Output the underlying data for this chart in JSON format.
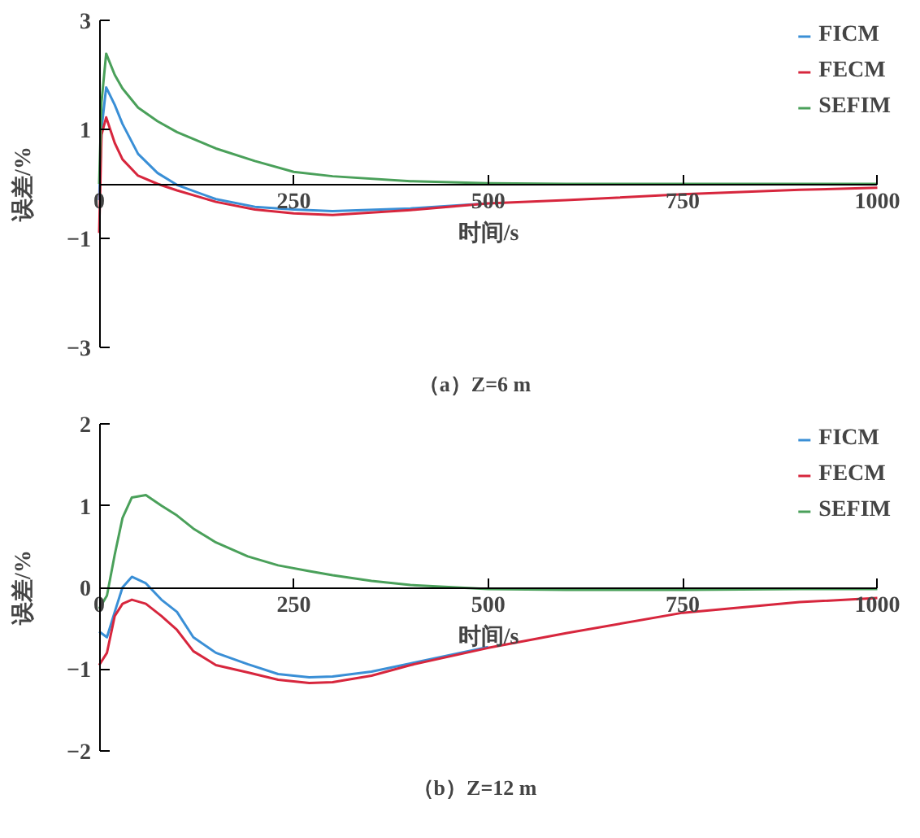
{
  "chart_data": [
    {
      "type": "line",
      "title": "（a）Z=6 m",
      "xlabel": "时间/s",
      "ylabel": "误差/%",
      "xlim": [
        0,
        1000
      ],
      "ylim": [
        -3,
        3
      ],
      "xticks": [
        0,
        250,
        500,
        750,
        1000
      ],
      "yticks": [
        -3,
        -1,
        1,
        3
      ],
      "legend": "top right",
      "grid": false,
      "x": [
        0,
        3,
        9,
        20,
        30,
        50,
        75,
        100,
        150,
        200,
        250,
        300,
        400,
        500,
        600,
        750,
        900,
        1000
      ],
      "series": [
        {
          "name": "FICM",
          "color": "#3a8fd6",
          "values": [
            -0.3,
            1.0,
            1.77,
            1.45,
            1.1,
            0.55,
            0.2,
            -0.02,
            -0.28,
            -0.42,
            -0.47,
            -0.5,
            -0.45,
            -0.36,
            null,
            null,
            null,
            null
          ]
        },
        {
          "name": "FECM",
          "color": "#d7263d",
          "values": [
            -0.9,
            0.9,
            1.22,
            0.75,
            0.45,
            0.15,
            0.0,
            -0.12,
            -0.33,
            -0.47,
            -0.54,
            -0.57,
            -0.48,
            -0.36,
            -0.3,
            -0.19,
            -0.11,
            -0.07
          ]
        },
        {
          "name": "SEFIM",
          "color": "#4aa05a",
          "values": [
            0,
            1.5,
            2.39,
            2.0,
            1.75,
            1.4,
            1.15,
            0.95,
            0.65,
            0.42,
            0.22,
            0.14,
            0.05,
            0.01,
            0,
            0,
            0,
            0
          ]
        }
      ]
    },
    {
      "type": "line",
      "title": "（b）Z=12 m",
      "xlabel": "时间/s",
      "ylabel": "误差/%",
      "xlim": [
        0,
        1000
      ],
      "ylim": [
        -2,
        2
      ],
      "xticks": [
        0,
        250,
        500,
        750,
        1000
      ],
      "yticks": [
        -2,
        -1,
        0,
        1,
        2
      ],
      "legend": "top right",
      "grid": false,
      "x": [
        0,
        10,
        20,
        30,
        42,
        60,
        80,
        100,
        121,
        150,
        191,
        230,
        270,
        300,
        350,
        400,
        500,
        600,
        750,
        900,
        1000
      ],
      "series": [
        {
          "name": "FICM",
          "color": "#3a8fd6",
          "values": [
            -0.54,
            -0.61,
            -0.3,
            0.0,
            0.13,
            0.05,
            -0.15,
            -0.3,
            -0.61,
            -0.8,
            -0.94,
            -1.06,
            -1.1,
            -1.09,
            -1.03,
            -0.93,
            -0.73,
            null,
            null,
            null,
            null
          ]
        },
        {
          "name": "FECM",
          "color": "#d7263d",
          "values": [
            -0.95,
            -0.8,
            -0.35,
            -0.2,
            -0.15,
            -0.2,
            -0.35,
            -0.52,
            -0.78,
            -0.95,
            -1.04,
            -1.13,
            -1.17,
            -1.16,
            -1.08,
            -0.95,
            -0.74,
            -0.56,
            -0.31,
            -0.18,
            -0.13
          ]
        },
        {
          "name": "SEFIM",
          "color": "#4aa05a",
          "values": [
            -0.26,
            -0.1,
            0.4,
            0.85,
            1.1,
            1.13,
            1.0,
            0.88,
            0.72,
            0.55,
            0.38,
            0.27,
            0.2,
            0.15,
            0.08,
            0.03,
            -0.02,
            -0.03,
            -0.03,
            -0.02,
            -0.02
          ]
        }
      ]
    }
  ]
}
